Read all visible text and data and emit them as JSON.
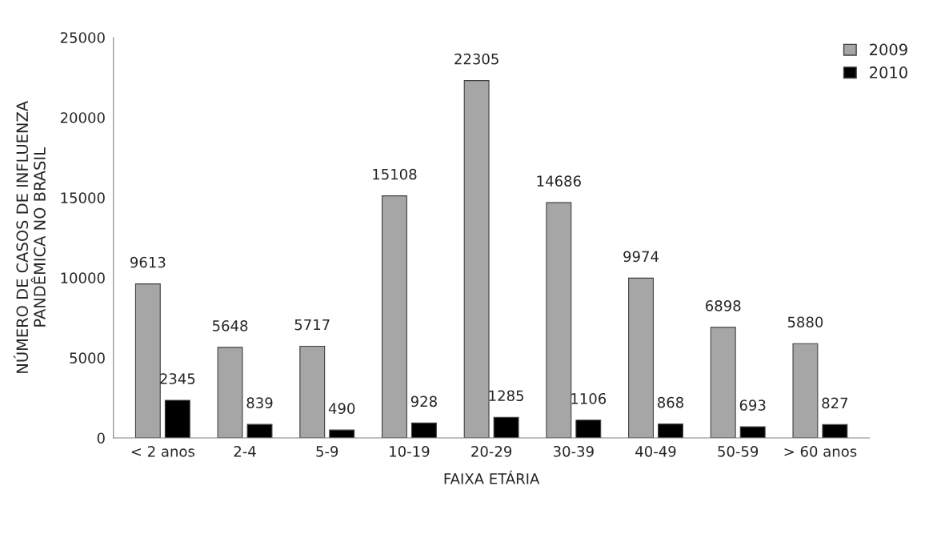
{
  "chart_data": {
    "type": "bar",
    "xlabel": "FAIXA ETÁRIA",
    "ylabel": "NÚMERO DE CASOS DE INFLUENZA\nPANDÊMICA NO BRASIL",
    "categories": [
      "< 2 anos",
      "2-4",
      "5-9",
      "10-19",
      "20-29",
      "30-39",
      "40-49",
      "50-59",
      "> 60 anos"
    ],
    "series": [
      {
        "name": "2009",
        "color": "#a6a6a6",
        "values": [
          9613,
          5648,
          5717,
          15108,
          22305,
          14686,
          9974,
          6898,
          5880
        ]
      },
      {
        "name": "2010",
        "color": "#000000",
        "values": [
          2345,
          839,
          490,
          928,
          1285,
          1106,
          868,
          693,
          827
        ]
      }
    ],
    "ylim": [
      0,
      25000
    ],
    "yticks": [
      0,
      5000,
      10000,
      15000,
      20000,
      25000
    ],
    "data_labels": true,
    "grid": false,
    "legend": "top right"
  }
}
